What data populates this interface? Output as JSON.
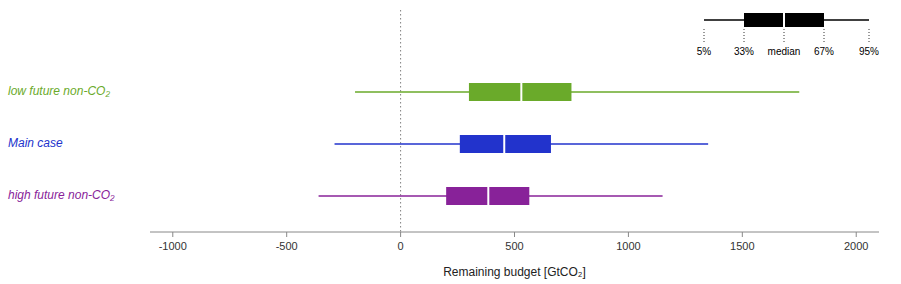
{
  "chart_data": {
    "type": "box",
    "orientation": "horizontal",
    "xlabel": "Remaining budget [GtCO₂]",
    "series": [
      {
        "name": "low future non-CO₂",
        "color": "#6aaa2a",
        "p5": -200,
        "p33": 300,
        "median": 530,
        "p67": 750,
        "p95": 1750
      },
      {
        "name": "Main case",
        "color": "#2233cc",
        "p5": -290,
        "p33": 260,
        "median": 455,
        "p67": 660,
        "p95": 1350
      },
      {
        "name": "high future non-CO₂",
        "color": "#882299",
        "p5": -360,
        "p33": 200,
        "median": 385,
        "p67": 565,
        "p95": 1150
      }
    ],
    "reference_line": 0,
    "annotations": [
      "5%",
      "33%",
      "median",
      "67%",
      "95%"
    ],
    "xlim": [
      -1100,
      2100
    ],
    "xticks": [
      -1000,
      -500,
      0,
      500,
      1000,
      1500,
      2000
    ],
    "tick_labels": "x",
    "grid": false
  }
}
